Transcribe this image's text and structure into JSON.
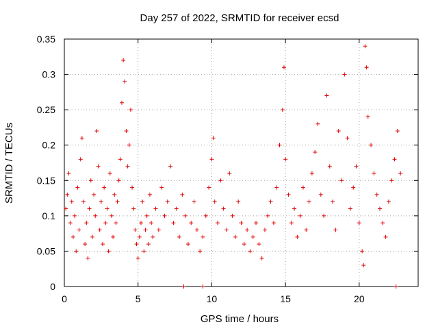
{
  "chart_data": {
    "type": "scatter",
    "title": "Day 257 of 2022, SRMTID for receiver ecsd",
    "xlabel": "GPS time / hours",
    "ylabel": "SRMTID / TECUs",
    "xlim": [
      0,
      24
    ],
    "ylim": [
      0,
      0.35
    ],
    "xticks": [
      0,
      5,
      10,
      15,
      20
    ],
    "yticks": [
      0,
      0.05,
      0.1,
      0.15,
      0.2,
      0.25,
      0.3,
      0.35
    ],
    "xtick_labels": [
      "0",
      "5",
      "10",
      "15",
      "20"
    ],
    "ytick_labels": [
      "0",
      "0.05",
      "0.1",
      "0.15",
      "0.2",
      "0.25",
      "0.3",
      "0.35"
    ],
    "grid": true,
    "marker": "+",
    "color": "#e00000",
    "series": [
      {
        "name": "SRMTID",
        "points": [
          [
            0.1,
            0.11
          ],
          [
            0.2,
            0.13
          ],
          [
            0.3,
            0.16
          ],
          [
            0.4,
            0.09
          ],
          [
            0.5,
            0.12
          ],
          [
            0.6,
            0.07
          ],
          [
            0.7,
            0.1
          ],
          [
            0.8,
            0.05
          ],
          [
            0.9,
            0.14
          ],
          [
            1.0,
            0.08
          ],
          [
            1.1,
            0.18
          ],
          [
            1.2,
            0.21
          ],
          [
            1.3,
            0.12
          ],
          [
            1.4,
            0.06
          ],
          [
            1.5,
            0.09
          ],
          [
            1.6,
            0.04
          ],
          [
            1.7,
            0.11
          ],
          [
            1.8,
            0.15
          ],
          [
            1.9,
            0.07
          ],
          [
            2.0,
            0.13
          ],
          [
            2.1,
            0.1
          ],
          [
            2.2,
            0.22
          ],
          [
            2.3,
            0.17
          ],
          [
            2.4,
            0.08
          ],
          [
            2.5,
            0.12
          ],
          [
            2.6,
            0.06
          ],
          [
            2.7,
            0.14
          ],
          [
            2.8,
            0.09
          ],
          [
            2.9,
            0.11
          ],
          [
            3.0,
            0.05
          ],
          [
            3.1,
            0.16
          ],
          [
            3.2,
            0.1
          ],
          [
            3.3,
            0.07
          ],
          [
            3.4,
            0.13
          ],
          [
            3.5,
            0.09
          ],
          [
            3.6,
            0.12
          ],
          [
            3.7,
            0.15
          ],
          [
            3.8,
            0.18
          ],
          [
            3.9,
            0.26
          ],
          [
            4.0,
            0.32
          ],
          [
            4.1,
            0.29
          ],
          [
            4.2,
            0.22
          ],
          [
            4.3,
            0.17
          ],
          [
            4.4,
            0.2
          ],
          [
            4.5,
            0.25
          ],
          [
            4.6,
            0.14
          ],
          [
            4.7,
            0.11
          ],
          [
            4.8,
            0.08
          ],
          [
            4.9,
            0.06
          ],
          [
            5.0,
            0.04
          ],
          [
            5.1,
            0.07
          ],
          [
            5.2,
            0.09
          ],
          [
            5.3,
            0.12
          ],
          [
            5.4,
            0.05
          ],
          [
            5.5,
            0.08
          ],
          [
            5.6,
            0.1
          ],
          [
            5.7,
            0.06
          ],
          [
            5.8,
            0.13
          ],
          [
            5.9,
            0.09
          ],
          [
            6.0,
            0.07
          ],
          [
            6.2,
            0.11
          ],
          [
            6.4,
            0.08
          ],
          [
            6.6,
            0.14
          ],
          [
            6.8,
            0.1
          ],
          [
            7.0,
            0.12
          ],
          [
            7.2,
            0.17
          ],
          [
            7.4,
            0.09
          ],
          [
            7.6,
            0.11
          ],
          [
            7.8,
            0.07
          ],
          [
            8.0,
            0.13
          ],
          [
            8.2,
            0.1
          ],
          [
            8.4,
            0.06
          ],
          [
            8.6,
            0.09
          ],
          [
            8.8,
            0.12
          ],
          [
            9.0,
            0.08
          ],
          [
            9.2,
            0.05
          ],
          [
            9.4,
            0.07
          ],
          [
            9.6,
            0.1
          ],
          [
            9.8,
            0.14
          ],
          [
            10.0,
            0.18
          ],
          [
            10.1,
            0.21
          ],
          [
            10.2,
            0.12
          ],
          [
            10.4,
            0.09
          ],
          [
            10.6,
            0.15
          ],
          [
            10.8,
            0.11
          ],
          [
            11.0,
            0.08
          ],
          [
            11.2,
            0.16
          ],
          [
            11.4,
            0.1
          ],
          [
            11.6,
            0.07
          ],
          [
            11.8,
            0.12
          ],
          [
            12.0,
            0.09
          ],
          [
            12.2,
            0.06
          ],
          [
            12.4,
            0.08
          ],
          [
            12.6,
            0.05
          ],
          [
            12.8,
            0.07
          ],
          [
            13.0,
            0.09
          ],
          [
            13.2,
            0.06
          ],
          [
            13.4,
            0.04
          ],
          [
            13.6,
            0.08
          ],
          [
            13.8,
            0.1
          ],
          [
            14.0,
            0.12
          ],
          [
            14.2,
            0.09
          ],
          [
            14.4,
            0.14
          ],
          [
            14.6,
            0.2
          ],
          [
            14.8,
            0.25
          ],
          [
            14.9,
            0.31
          ],
          [
            15.0,
            0.18
          ],
          [
            15.2,
            0.13
          ],
          [
            15.4,
            0.09
          ],
          [
            15.6,
            0.11
          ],
          [
            15.8,
            0.07
          ],
          [
            16.0,
            0.1
          ],
          [
            16.2,
            0.14
          ],
          [
            16.4,
            0.08
          ],
          [
            16.6,
            0.12
          ],
          [
            16.8,
            0.16
          ],
          [
            17.0,
            0.19
          ],
          [
            17.2,
            0.23
          ],
          [
            17.4,
            0.13
          ],
          [
            17.6,
            0.1
          ],
          [
            17.8,
            0.27
          ],
          [
            18.0,
            0.17
          ],
          [
            18.2,
            0.12
          ],
          [
            18.4,
            0.08
          ],
          [
            18.6,
            0.22
          ],
          [
            18.8,
            0.15
          ],
          [
            19.0,
            0.3
          ],
          [
            19.2,
            0.21
          ],
          [
            19.4,
            0.11
          ],
          [
            19.6,
            0.14
          ],
          [
            19.8,
            0.17
          ],
          [
            20.0,
            0.09
          ],
          [
            20.2,
            0.05
          ],
          [
            20.3,
            0.03
          ],
          [
            20.4,
            0.34
          ],
          [
            20.5,
            0.31
          ],
          [
            20.6,
            0.24
          ],
          [
            20.8,
            0.2
          ],
          [
            21.0,
            0.16
          ],
          [
            21.2,
            0.13
          ],
          [
            21.4,
            0.11
          ],
          [
            21.6,
            0.09
          ],
          [
            21.8,
            0.07
          ],
          [
            22.0,
            0.12
          ],
          [
            22.2,
            0.15
          ],
          [
            22.4,
            0.18
          ],
          [
            22.6,
            0.22
          ],
          [
            22.8,
            0.16
          ],
          [
            8.1,
            0.0
          ],
          [
            9.4,
            0.0
          ],
          [
            22.5,
            0.0
          ]
        ]
      }
    ]
  }
}
